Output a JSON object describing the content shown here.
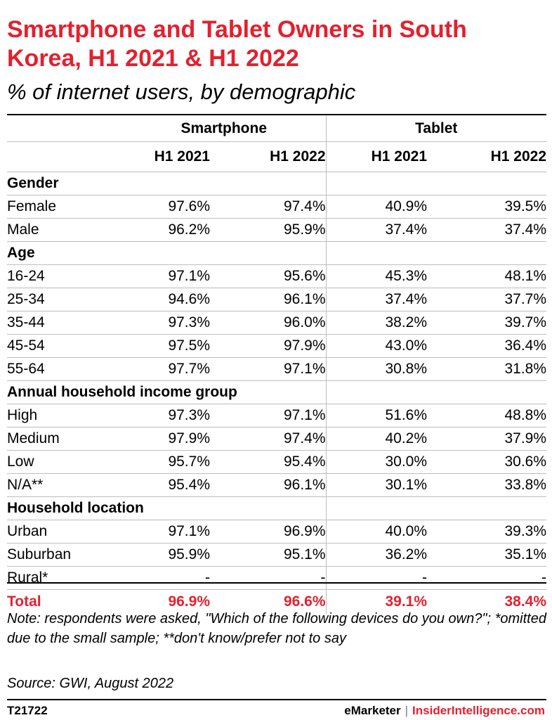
{
  "title": "Smartphone and Tablet Owners in South Korea, H1 2021 & H1 2022",
  "subtitle": "% of internet users, by demographic",
  "groups": [
    "Smartphone",
    "Tablet"
  ],
  "columns": [
    "H1 2021",
    "H1 2022",
    "H1 2021",
    "H1 2022"
  ],
  "sections": [
    {
      "name": "Gender",
      "rows": [
        {
          "label": "Female",
          "values": [
            "97.6%",
            "97.4%",
            "40.9%",
            "39.5%"
          ]
        },
        {
          "label": "Male",
          "values": [
            "96.2%",
            "95.9%",
            "37.4%",
            "37.4%"
          ]
        }
      ]
    },
    {
      "name": "Age",
      "rows": [
        {
          "label": "16-24",
          "values": [
            "97.1%",
            "95.6%",
            "45.3%",
            "48.1%"
          ]
        },
        {
          "label": "25-34",
          "values": [
            "94.6%",
            "96.1%",
            "37.4%",
            "37.7%"
          ]
        },
        {
          "label": "35-44",
          "values": [
            "97.3%",
            "96.0%",
            "38.2%",
            "39.7%"
          ]
        },
        {
          "label": "45-54",
          "values": [
            "97.5%",
            "97.9%",
            "43.0%",
            "36.4%"
          ]
        },
        {
          "label": "55-64",
          "values": [
            "97.7%",
            "97.1%",
            "30.8%",
            "31.8%"
          ]
        }
      ]
    },
    {
      "name": "Annual household income group",
      "rows": [
        {
          "label": "High",
          "values": [
            "97.3%",
            "97.1%",
            "51.6%",
            "48.8%"
          ]
        },
        {
          "label": "Medium",
          "values": [
            "97.9%",
            "97.4%",
            "40.2%",
            "37.9%"
          ]
        },
        {
          "label": "Low",
          "values": [
            "95.7%",
            "95.4%",
            "30.0%",
            "30.6%"
          ]
        },
        {
          "label": "N/A**",
          "values": [
            "95.4%",
            "96.1%",
            "30.1%",
            "33.8%"
          ]
        }
      ]
    },
    {
      "name": "Household location",
      "rows": [
        {
          "label": "Urban",
          "values": [
            "97.1%",
            "96.9%",
            "40.0%",
            "39.3%"
          ]
        },
        {
          "label": "Suburban",
          "values": [
            "95.9%",
            "95.1%",
            "36.2%",
            "35.1%"
          ]
        },
        {
          "label": "Rural*",
          "values": [
            "-",
            "-",
            "-",
            "-"
          ]
        }
      ]
    }
  ],
  "total": {
    "label": "Total",
    "values": [
      "96.9%",
      "96.6%",
      "39.1%",
      "38.4%"
    ]
  },
  "note": "Note: respondents were asked, \"Which of the following devices do you own?\"; *omitted due to the small sample; **don't know/prefer not to say",
  "source": "Source: GWI, August 2022",
  "code": "T21722",
  "brand": {
    "emarketer": "eMarketer",
    "separator": "|",
    "insider": "InsiderIntelligence.com"
  },
  "colors": {
    "accent": "#e4202e",
    "rule": "#000000",
    "grid": "#bdbdbd"
  },
  "chart_data": {
    "type": "table",
    "title": "Smartphone and Tablet Owners in South Korea, H1 2021 & H1 2022",
    "subtitle": "% of internet users, by demographic",
    "columns": [
      "Smartphone H1 2021",
      "Smartphone H1 2022",
      "Tablet H1 2021",
      "Tablet H1 2022"
    ],
    "rows": [
      {
        "section": "Gender",
        "label": "Female",
        "values": [
          97.6,
          97.4,
          40.9,
          39.5
        ]
      },
      {
        "section": "Gender",
        "label": "Male",
        "values": [
          96.2,
          95.9,
          37.4,
          37.4
        ]
      },
      {
        "section": "Age",
        "label": "16-24",
        "values": [
          97.1,
          95.6,
          45.3,
          48.1
        ]
      },
      {
        "section": "Age",
        "label": "25-34",
        "values": [
          94.6,
          96.1,
          37.4,
          37.7
        ]
      },
      {
        "section": "Age",
        "label": "35-44",
        "values": [
          97.3,
          96.0,
          38.2,
          39.7
        ]
      },
      {
        "section": "Age",
        "label": "45-54",
        "values": [
          97.5,
          97.9,
          43.0,
          36.4
        ]
      },
      {
        "section": "Age",
        "label": "55-64",
        "values": [
          97.7,
          97.1,
          30.8,
          31.8
        ]
      },
      {
        "section": "Annual household income group",
        "label": "High",
        "values": [
          97.3,
          97.1,
          51.6,
          48.8
        ]
      },
      {
        "section": "Annual household income group",
        "label": "Medium",
        "values": [
          97.9,
          97.4,
          40.2,
          37.9
        ]
      },
      {
        "section": "Annual household income group",
        "label": "Low",
        "values": [
          95.7,
          95.4,
          30.0,
          30.6
        ]
      },
      {
        "section": "Annual household income group",
        "label": "N/A**",
        "values": [
          95.4,
          96.1,
          30.1,
          33.8
        ]
      },
      {
        "section": "Household location",
        "label": "Urban",
        "values": [
          97.1,
          96.9,
          40.0,
          39.3
        ]
      },
      {
        "section": "Household location",
        "label": "Suburban",
        "values": [
          95.9,
          95.1,
          36.2,
          35.1
        ]
      },
      {
        "section": "Household location",
        "label": "Rural*",
        "values": [
          null,
          null,
          null,
          null
        ]
      },
      {
        "section": "",
        "label": "Total",
        "values": [
          96.9,
          96.6,
          39.1,
          38.4
        ]
      }
    ]
  }
}
